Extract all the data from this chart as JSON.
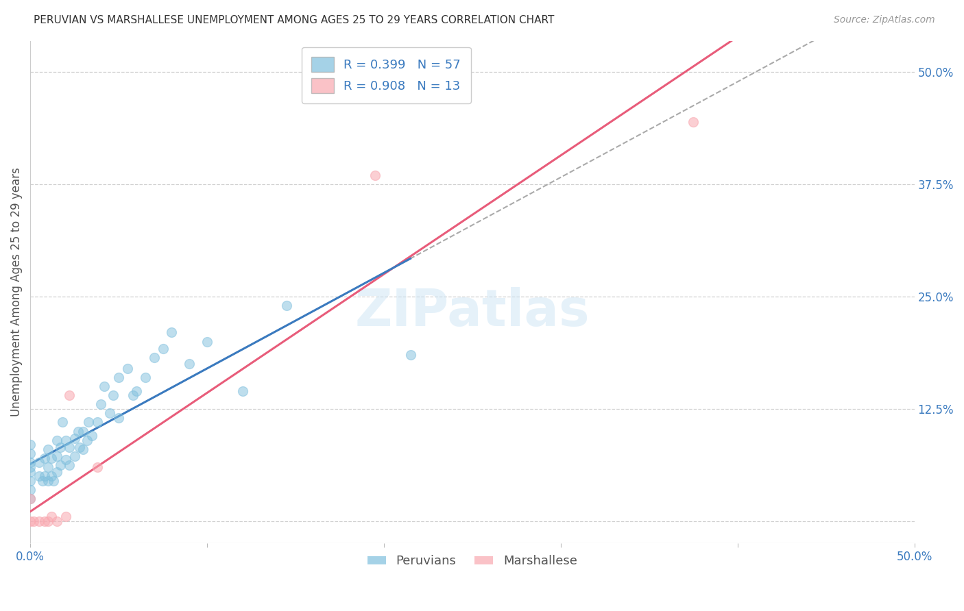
{
  "title": "PERUVIAN VS MARSHALLESE UNEMPLOYMENT AMONG AGES 25 TO 29 YEARS CORRELATION CHART",
  "source": "Source: ZipAtlas.com",
  "ylabel": "Unemployment Among Ages 25 to 29 years",
  "xlim": [
    0.0,
    0.5
  ],
  "ylim": [
    -0.025,
    0.535
  ],
  "xticks": [
    0.0,
    0.1,
    0.2,
    0.3,
    0.4,
    0.5
  ],
  "xticklabels": [
    "0.0%",
    "",
    "",
    "",
    "",
    "50.0%"
  ],
  "yticks": [
    0.0,
    0.125,
    0.25,
    0.375,
    0.5
  ],
  "yticklabels": [
    "",
    "12.5%",
    "25.0%",
    "37.5%",
    "50.0%"
  ],
  "peruvian_color": "#7fbfdd",
  "marshallese_color": "#f9a8b0",
  "peruvian_line_color": "#3a7abf",
  "marshallese_line_color": "#e85c7a",
  "peruvian_R": 0.399,
  "peruvian_N": 57,
  "marshallese_R": 0.908,
  "marshallese_N": 13,
  "peruvian_x": [
    0.0,
    0.0,
    0.0,
    0.0,
    0.0,
    0.0,
    0.0,
    0.0,
    0.005,
    0.005,
    0.007,
    0.008,
    0.008,
    0.01,
    0.01,
    0.01,
    0.012,
    0.012,
    0.013,
    0.015,
    0.015,
    0.015,
    0.017,
    0.017,
    0.018,
    0.02,
    0.02,
    0.022,
    0.022,
    0.025,
    0.025,
    0.027,
    0.028,
    0.03,
    0.03,
    0.032,
    0.033,
    0.035,
    0.038,
    0.04,
    0.042,
    0.045,
    0.047,
    0.05,
    0.05,
    0.055,
    0.058,
    0.06,
    0.065,
    0.07,
    0.075,
    0.08,
    0.09,
    0.1,
    0.12,
    0.145,
    0.215
  ],
  "peruvian_y": [
    0.025,
    0.035,
    0.045,
    0.055,
    0.065,
    0.075,
    0.085,
    0.06,
    0.05,
    0.065,
    0.045,
    0.05,
    0.07,
    0.045,
    0.06,
    0.08,
    0.05,
    0.07,
    0.045,
    0.055,
    0.072,
    0.09,
    0.062,
    0.082,
    0.11,
    0.068,
    0.09,
    0.062,
    0.082,
    0.072,
    0.092,
    0.1,
    0.082,
    0.08,
    0.1,
    0.09,
    0.11,
    0.095,
    0.11,
    0.13,
    0.15,
    0.12,
    0.14,
    0.16,
    0.115,
    0.17,
    0.14,
    0.145,
    0.16,
    0.182,
    0.192,
    0.21,
    0.175,
    0.2,
    0.145,
    0.24,
    0.185
  ],
  "marshallese_x": [
    0.0,
    0.0,
    0.002,
    0.005,
    0.008,
    0.01,
    0.012,
    0.015,
    0.02,
    0.022,
    0.038,
    0.195,
    0.375
  ],
  "marshallese_y": [
    0.0,
    0.025,
    0.0,
    0.0,
    0.0,
    0.0,
    0.005,
    0.0,
    0.005,
    0.14,
    0.06,
    0.385,
    0.445
  ],
  "watermark": "ZIPatlas",
  "background_color": "#ffffff",
  "grid_color": "#d0d0d0"
}
